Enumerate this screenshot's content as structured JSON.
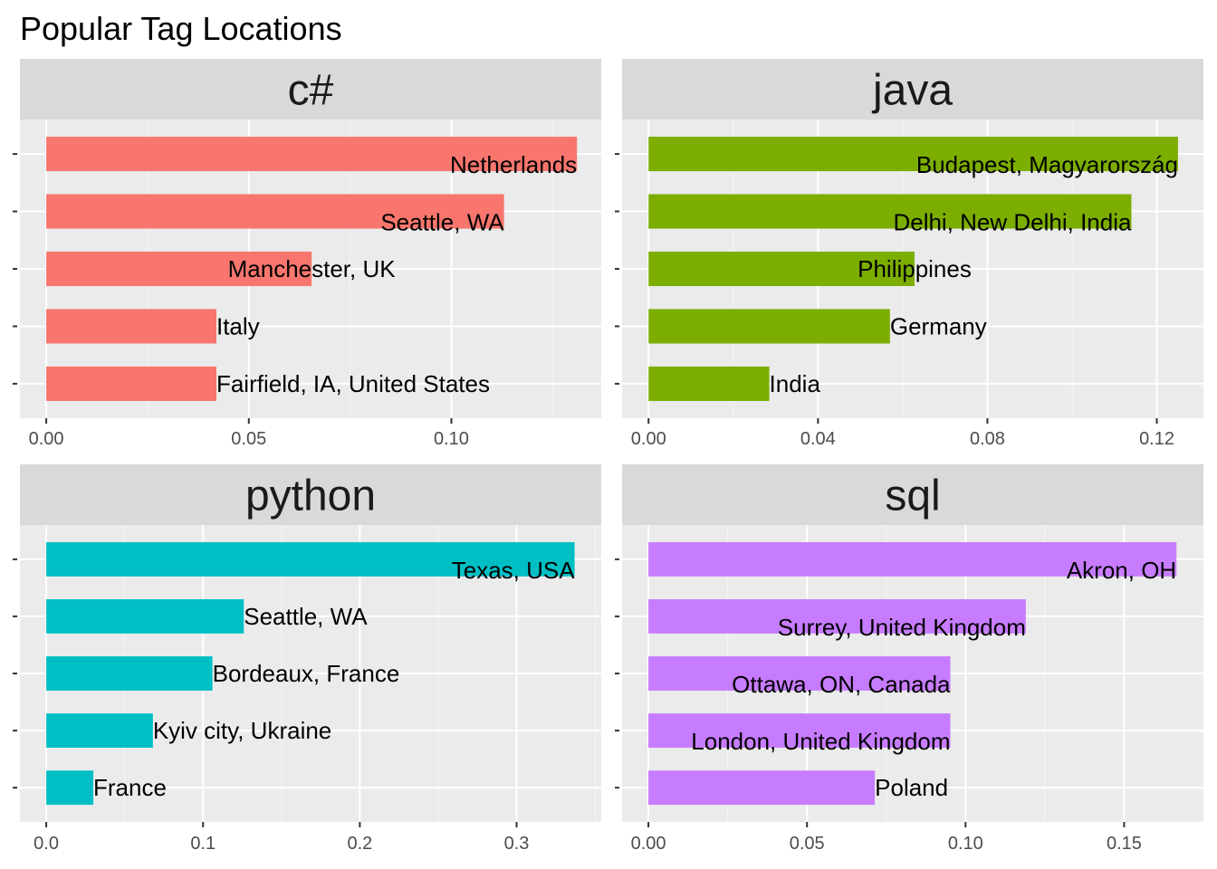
{
  "title": "Popular Tag Locations",
  "colors": {
    "panel_bg": "#EBEBEB",
    "strip_bg": "#D9D9D9",
    "grid_major": "#FFFFFF",
    "grid_minor": "#F5F5F5",
    "tick": "#333333"
  },
  "chart_data": [
    {
      "type": "bar",
      "orientation": "horizontal",
      "panel": "c#",
      "color": "#F8766D",
      "categories": [
        "Netherlands",
        "Seattle, WA",
        "Manchester, UK",
        "Italy",
        "Fairfield, IA, United States"
      ],
      "values": [
        0.131,
        0.113,
        0.0655,
        0.042,
        0.042
      ],
      "xlim": [
        -0.0065,
        0.137
      ],
      "xticks": [
        0.0,
        0.05,
        0.1
      ],
      "xtick_labels": [
        "0.00",
        "0.05",
        "0.10"
      ],
      "label_hjust": [
        1,
        1,
        0.5,
        0,
        0
      ]
    },
    {
      "type": "bar",
      "orientation": "horizontal",
      "panel": "java",
      "color": "#7CAE00",
      "categories": [
        "Budapest, Magyarország",
        "Delhi, New Delhi, India",
        "Philippines",
        "Germany",
        "India"
      ],
      "values": [
        0.125,
        0.114,
        0.0628,
        0.057,
        0.0285
      ],
      "xlim": [
        -0.00625,
        0.131
      ],
      "xticks": [
        0.0,
        0.04,
        0.08,
        0.12
      ],
      "xtick_labels": [
        "0.00",
        "0.04",
        "0.08",
        "0.12"
      ],
      "label_hjust": [
        1,
        1,
        0.5,
        0,
        0
      ]
    },
    {
      "type": "bar",
      "orientation": "horizontal",
      "panel": "python",
      "color": "#00BFC4",
      "categories": [
        "Texas, USA",
        "Seattle, WA",
        "Bordeaux, France",
        "Kyiv city, Ukraine",
        "France"
      ],
      "values": [
        0.337,
        0.126,
        0.106,
        0.068,
        0.03
      ],
      "xlim": [
        -0.0168,
        0.354
      ],
      "xticks": [
        0.0,
        0.1,
        0.2,
        0.3
      ],
      "xtick_labels": [
        "0.0",
        "0.1",
        "0.2",
        "0.3"
      ],
      "label_hjust": [
        1,
        0,
        0,
        0,
        0
      ]
    },
    {
      "type": "bar",
      "orientation": "horizontal",
      "panel": "sql",
      "color": "#C77CFF",
      "categories": [
        "Akron, OH",
        "Surrey, United Kingdom",
        "Ottawa, ON, Canada",
        "London, United Kingdom",
        "Poland"
      ],
      "values": [
        0.1665,
        0.119,
        0.0952,
        0.0952,
        0.0714
      ],
      "xlim": [
        -0.0083,
        0.175
      ],
      "xticks": [
        0.0,
        0.05,
        0.1,
        0.15
      ],
      "xtick_labels": [
        "0.00",
        "0.05",
        "0.10",
        "0.15"
      ],
      "label_hjust": [
        1,
        1,
        1,
        1,
        0
      ]
    }
  ]
}
